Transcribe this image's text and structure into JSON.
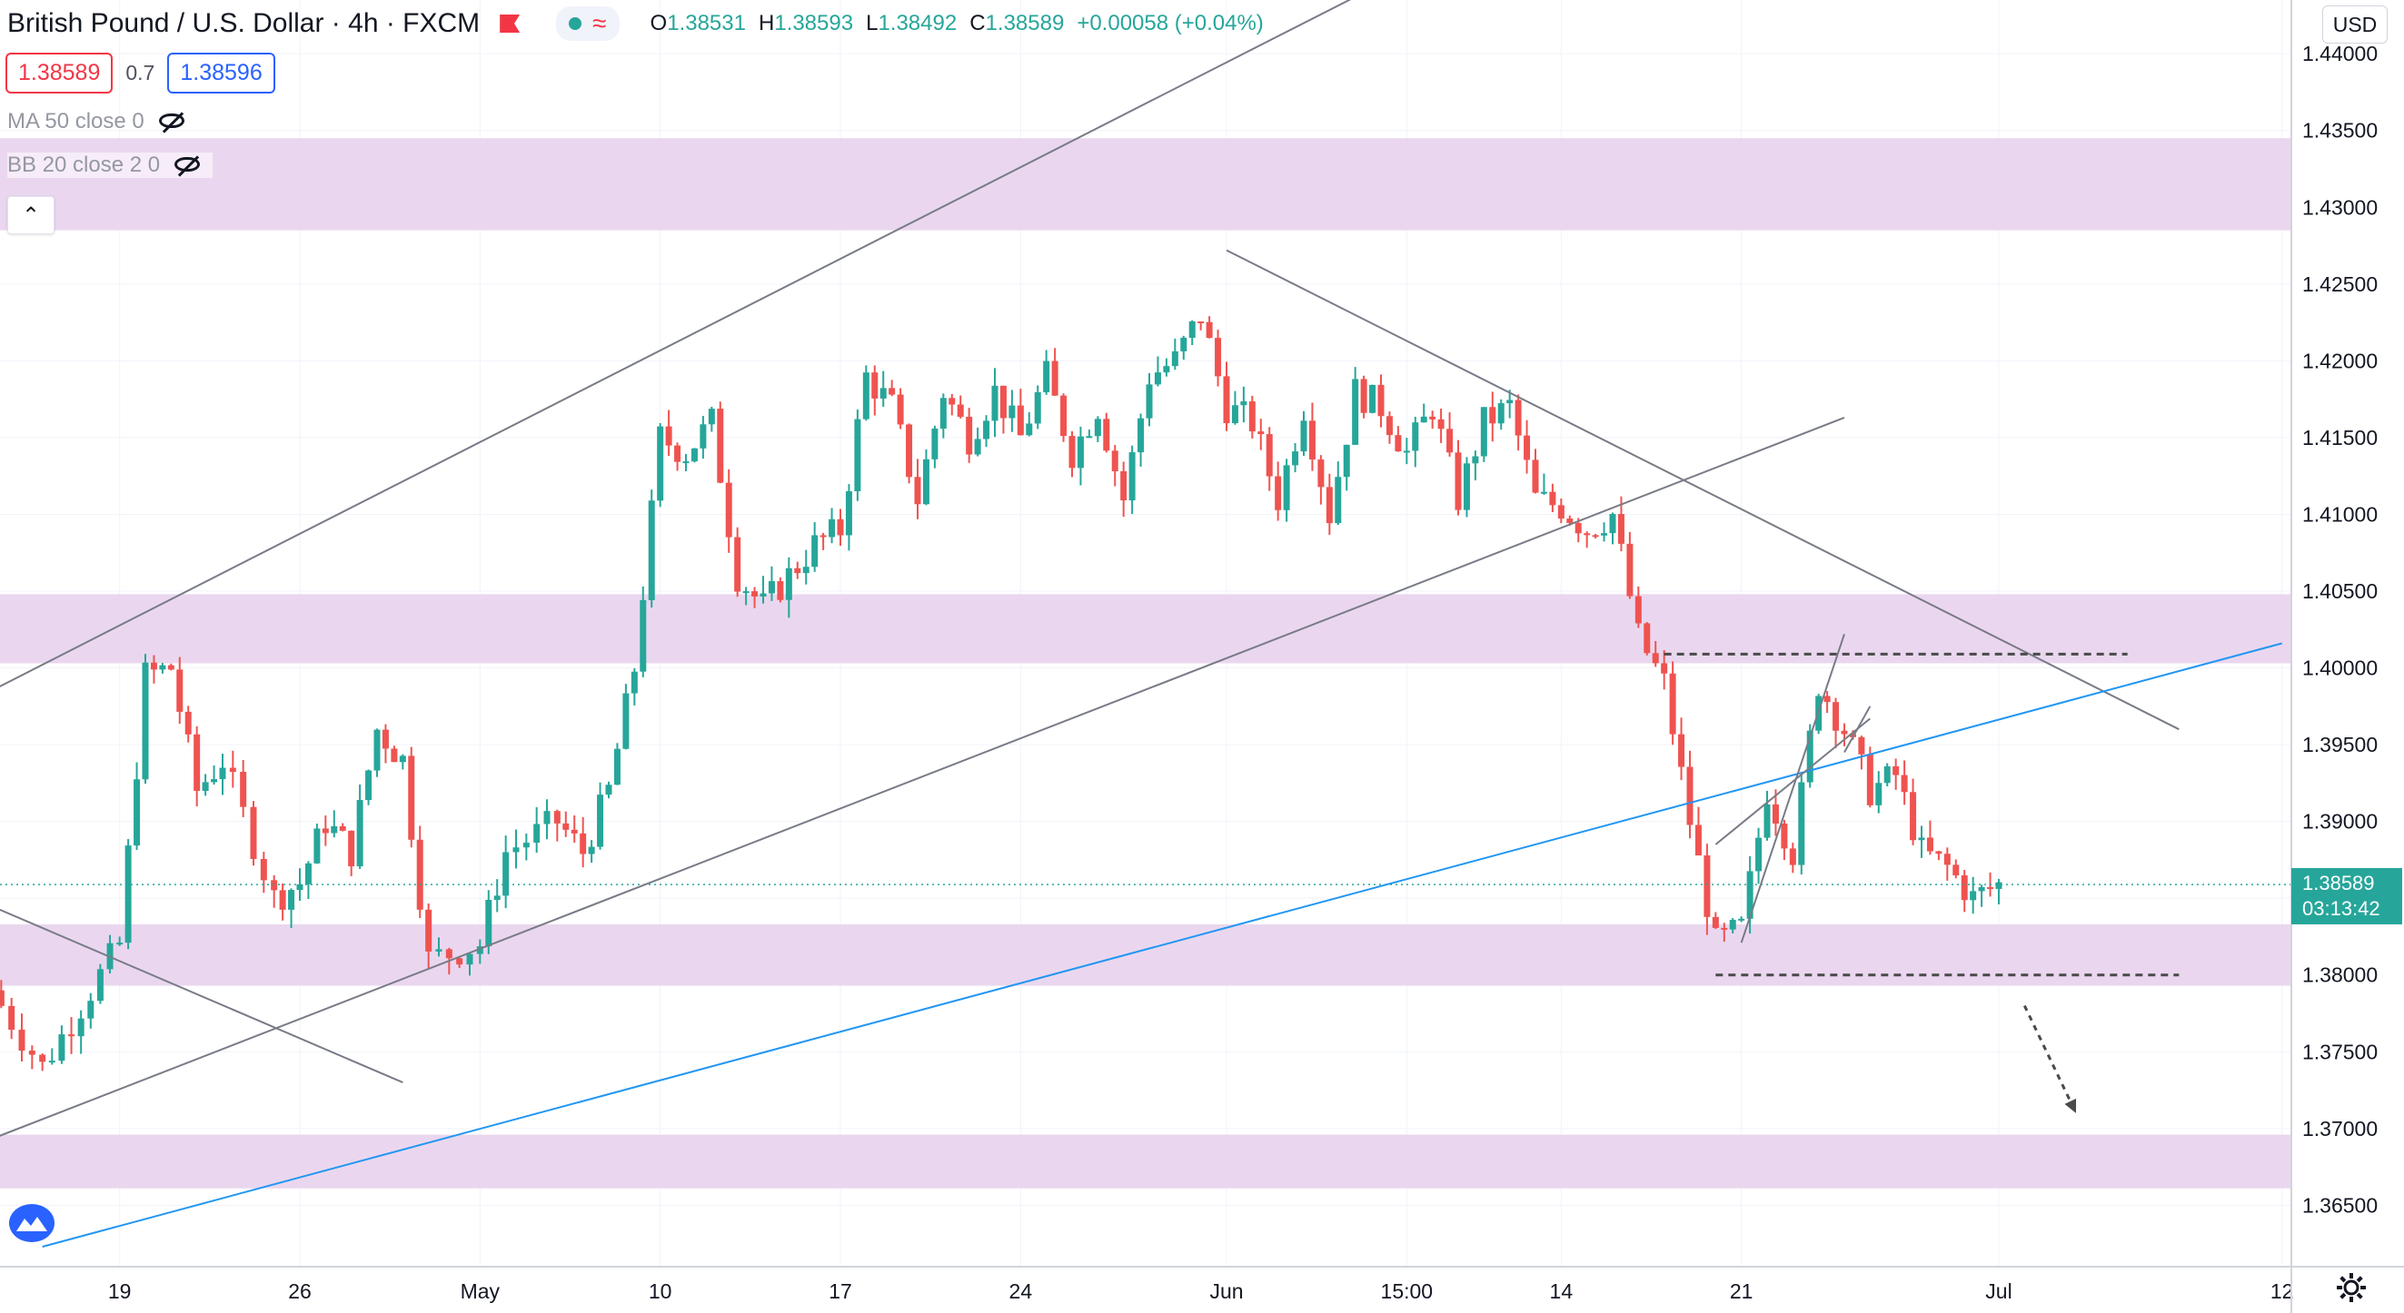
{
  "header": {
    "symbol": "British Pound / U.S. Dollar · 4h · FXCM",
    "ohlc": {
      "o_label": "O",
      "o": "1.38531",
      "h_label": "H",
      "h": "1.38593",
      "l_label": "L",
      "l": "1.38492",
      "c_label": "C",
      "c": "1.38589",
      "change": "+0.00058 (+0.04%)"
    },
    "bid": "1.38589",
    "spread": "0.7",
    "ask": "1.38596",
    "currency": "USD",
    "last_price": "1.38589",
    "countdown": "03:13:42"
  },
  "indicators": [
    {
      "label": "MA 50 close 0",
      "icon": "eye-off-icon"
    },
    {
      "label": "BB 20 close 2 0",
      "icon": "eye-off-icon"
    }
  ],
  "colors": {
    "up": "#26a69a",
    "down": "#ef5350",
    "zone": "#e9d5ee",
    "trend": "#2196f3",
    "line": "#787b86"
  },
  "chart_data": {
    "type": "candlestick",
    "x_ticks": [
      "19",
      "26",
      "May",
      "10",
      "17",
      "24",
      "Jun",
      "15:00",
      "14",
      "21",
      "Jul",
      "12"
    ],
    "y_ticks": [
      "1.44000",
      "1.43500",
      "1.43000",
      "1.42500",
      "1.42000",
      "1.41500",
      "1.41000",
      "1.40500",
      "1.40000",
      "1.39500",
      "1.39000",
      "1.38500",
      "1.38000",
      "1.37500",
      "1.37000",
      "1.36500"
    ],
    "ylim": [
      1.361,
      1.4435
    ],
    "last": 1.38589,
    "zones": [
      [
        1.4285,
        1.4345
      ],
      [
        1.4003,
        1.4048
      ],
      [
        1.3793,
        1.3833
      ],
      [
        1.3661,
        1.3696
      ]
    ],
    "trendlines": [
      {
        "type": "line",
        "from": [
          "2021-04-14",
          1.3985
        ],
        "to": [
          "2021-06-06",
          1.4437
        ]
      },
      {
        "type": "line",
        "from": [
          "2021-04-14",
          1.3693
        ],
        "to": [
          "2021-06-25",
          1.4163
        ]
      },
      {
        "type": "line",
        "from": [
          "2021-06-01",
          1.4272
        ],
        "to": [
          "2021-07-08",
          1.396
        ]
      },
      {
        "type": "line",
        "from": [
          "2021-04-14",
          1.3845
        ],
        "to": [
          "2021-04-30",
          1.373
        ]
      },
      {
        "type": "blue",
        "from": [
          "2021-04-16",
          1.3623
        ],
        "to": [
          "2021-07-12",
          1.4016
        ]
      },
      {
        "type": "dashed",
        "from": [
          "2021-06-18",
          1.4009
        ],
        "to": [
          "2021-07-06",
          1.4009
        ]
      },
      {
        "type": "dashed",
        "from": [
          "2021-06-20",
          1.38
        ],
        "to": [
          "2021-07-08",
          1.38
        ]
      },
      {
        "type": "line",
        "from": [
          "2021-06-21",
          1.3821
        ],
        "to": [
          "2021-06-25",
          1.4022
        ]
      },
      {
        "type": "line",
        "from": [
          "2021-06-20",
          1.3885
        ],
        "to": [
          "2021-06-26",
          1.3967
        ]
      },
      {
        "type": "line",
        "from": [
          "2021-06-25",
          1.3945
        ],
        "to": [
          "2021-06-26",
          1.3975
        ]
      },
      {
        "type": "arrow",
        "from": [
          "2021-07-02",
          1.378
        ],
        "to": [
          "2021-07-04",
          1.371
        ]
      }
    ],
    "pivots": [
      [
        "2021-04-14",
        1.379
      ],
      [
        "2021-04-16",
        1.374
      ],
      [
        "2021-04-19",
        1.382
      ],
      [
        "2021-04-20",
        1.3995
      ],
      [
        "2021-04-21",
        1.4
      ],
      [
        "2021-04-22",
        1.392
      ],
      [
        "2021-04-23",
        1.394
      ],
      [
        "2021-04-25",
        1.385
      ],
      [
        "2021-04-26",
        1.386
      ],
      [
        "2021-04-27",
        1.39
      ],
      [
        "2021-04-28",
        1.388
      ],
      [
        "2021-04-29",
        1.396
      ],
      [
        "2021-04-30",
        1.394
      ],
      [
        "2021-05-01",
        1.381
      ],
      [
        "2021-05-03",
        1.382
      ],
      [
        "2021-05-04",
        1.388
      ],
      [
        "2021-05-06",
        1.39
      ],
      [
        "2021-05-07",
        1.388
      ],
      [
        "2021-05-08",
        1.392
      ],
      [
        "2021-05-09",
        1.4
      ],
      [
        "2021-05-10",
        1.415
      ],
      [
        "2021-05-11",
        1.414
      ],
      [
        "2021-05-12",
        1.416
      ],
      [
        "2021-05-13",
        1.406
      ],
      [
        "2021-05-14",
        1.404
      ],
      [
        "2021-05-15",
        1.406
      ],
      [
        "2021-05-16",
        1.408
      ],
      [
        "2021-05-17",
        1.409
      ],
      [
        "2021-05-18",
        1.419
      ],
      [
        "2021-05-19",
        1.417
      ],
      [
        "2021-05-20",
        1.411
      ],
      [
        "2021-05-21",
        1.418
      ],
      [
        "2021-05-22",
        1.415
      ],
      [
        "2021-05-23",
        1.418
      ],
      [
        "2021-05-24",
        1.415
      ],
      [
        "2021-05-25",
        1.419
      ],
      [
        "2021-05-26",
        1.414
      ],
      [
        "2021-05-27",
        1.417
      ],
      [
        "2021-05-28",
        1.411
      ],
      [
        "2021-05-29",
        1.419
      ],
      [
        "2021-05-30",
        1.42
      ],
      [
        "2021-05-31",
        1.423
      ],
      [
        "2021-06-01",
        1.417
      ],
      [
        "2021-06-02",
        1.416
      ],
      [
        "2021-06-03",
        1.411
      ],
      [
        "2021-06-04",
        1.417
      ],
      [
        "2021-06-05",
        1.41
      ],
      [
        "2021-06-06",
        1.418
      ],
      [
        "2021-06-07",
        1.417
      ],
      [
        "2021-06-08",
        1.414
      ],
      [
        "2021-06-09",
        1.417
      ],
      [
        "2021-06-10",
        1.411
      ],
      [
        "2021-06-11",
        1.416
      ],
      [
        "2021-06-12",
        1.417
      ],
      [
        "2021-06-13",
        1.411
      ],
      [
        "2021-06-14",
        1.4105
      ],
      [
        "2021-06-15",
        1.409
      ],
      [
        "2021-06-16",
        1.41
      ],
      [
        "2021-06-17",
        1.402
      ],
      [
        "2021-06-18",
        1.399
      ],
      [
        "2021-06-19",
        1.39
      ],
      [
        "2021-06-20",
        1.382
      ],
      [
        "2021-06-21",
        1.383
      ],
      [
        "2021-06-22",
        1.392
      ],
      [
        "2021-06-23",
        1.388
      ],
      [
        "2021-06-24",
        1.399
      ],
      [
        "2021-06-25",
        1.396
      ],
      [
        "2021-06-26",
        1.392
      ],
      [
        "2021-06-27",
        1.393
      ],
      [
        "2021-06-28",
        1.388
      ],
      [
        "2021-06-29",
        1.387
      ],
      [
        "2021-06-30",
        1.385
      ],
      [
        "2021-07-01",
        1.38589
      ]
    ]
  }
}
